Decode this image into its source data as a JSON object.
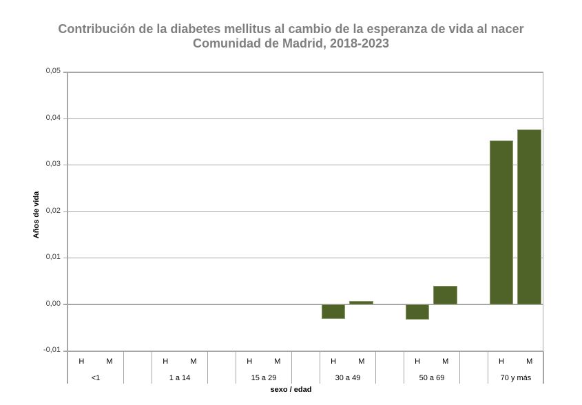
{
  "chart_data": {
    "type": "bar",
    "title": "Contribución de la diabetes mellitus al cambio de la esperanza de vida al nacer",
    "subtitle": "Comunidad de Madrid, 2018-2023",
    "xlabel": "sexo / edad",
    "ylabel": "Años de vida",
    "ylim": [
      -0.01,
      0.05
    ],
    "yticks": [
      "0,05",
      "0,04",
      "0,03",
      "0,02",
      "0,01",
      "0,00",
      "-0,01"
    ],
    "grid": true,
    "legend": null,
    "groups": [
      "<1",
      "1 a 14",
      "15 a 29",
      "30 a 49",
      "50 a 69",
      "70 y más"
    ],
    "subcategories": [
      "H",
      "M"
    ],
    "categories": [
      "<1 H",
      "<1 M",
      "1 a 14 H",
      "1 a 14 M",
      "15 a 29 H",
      "15 a 29 M",
      "30 a 49 H",
      "30 a 49 M",
      "50 a 69 H",
      "50 a 69 M",
      "70 y más H",
      "70 y más M"
    ],
    "values": [
      0,
      0,
      0,
      0,
      0,
      0,
      -0.0031,
      0.0008,
      -0.0032,
      0.004,
      0.0353,
      0.0376
    ],
    "bar_color": "#4f6228"
  },
  "header": {
    "title_line1": "Contribución de la diabetes mellitus al cambio de la esperanza de vida al nacer",
    "title_line2": "Comunidad de Madrid, 2018-2023"
  },
  "axis": {
    "ylabel": "Años de vida",
    "xlabel": "sexo / edad",
    "yticks": [
      "0,05",
      "0,04",
      "0,03",
      "0,02",
      "0,01",
      "0,00",
      "-0,01"
    ],
    "sex": {
      "h": "H",
      "m": "M"
    },
    "groups": [
      "<1",
      "1 a 14",
      "15 a 29",
      "30 a 49",
      "50 a 69",
      "70 y más"
    ]
  }
}
